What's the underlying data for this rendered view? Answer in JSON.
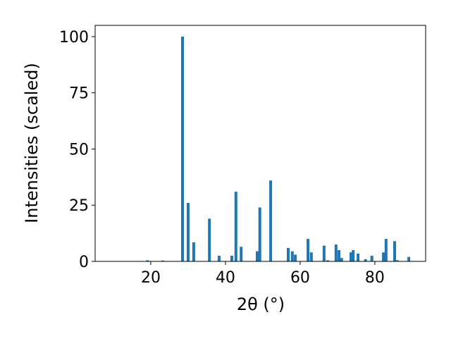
{
  "chart_data": {
    "type": "bar",
    "x_label": "2θ (°)",
    "y_label": "Intensities (scaled)",
    "x": [
      19.1,
      23.2,
      28.5,
      30.0,
      31.5,
      35.7,
      38.3,
      41.7,
      42.8,
      44.2,
      48.5,
      49.2,
      52.1,
      56.8,
      57.9,
      58.7,
      62.1,
      63.0,
      66.4,
      67.4,
      69.6,
      70.4,
      71.1,
      73.6,
      74.2,
      75.5,
      77.5,
      79.2,
      82.3,
      83.0,
      85.3,
      86.0,
      89.1
    ],
    "values": [
      0.5,
      0.4,
      100,
      26,
      8.5,
      19,
      2.5,
      2.5,
      31,
      6.5,
      4.5,
      24,
      36,
      6,
      4.5,
      3,
      10,
      4,
      7,
      0.5,
      7.5,
      5,
      1.5,
      4,
      5,
      3.5,
      1,
      2.5,
      4,
      10,
      9,
      0.5,
      2
    ],
    "color": "#1f77b4",
    "xlim": [
      5.1,
      93.6
    ],
    "xticks": [
      20,
      40,
      60,
      80
    ],
    "ylim": [
      0,
      105
    ],
    "yticks": [
      0,
      25,
      50,
      75,
      100
    ],
    "grid": false
  }
}
